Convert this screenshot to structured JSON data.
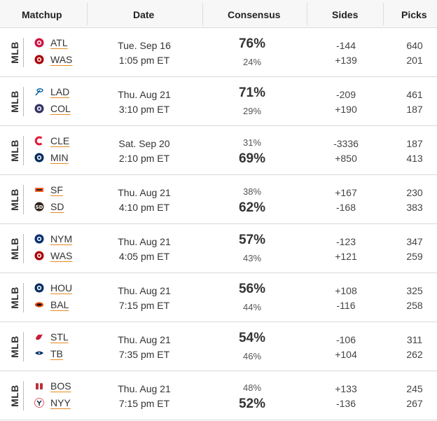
{
  "header": {
    "matchup": "Matchup",
    "date": "Date",
    "consensus": "Consensus",
    "sides": "Sides",
    "picks": "Picks"
  },
  "games": [
    {
      "league": "MLB",
      "away": {
        "abbr": "ATL",
        "logo": "braves-logo",
        "color": "#ce1141"
      },
      "home": {
        "abbr": "WAS",
        "logo": "nationals-logo",
        "color": "#ab0003"
      },
      "date": "Tue. Sep 16",
      "time": "1:05 pm ET",
      "consensus_away": "76%",
      "consensus_home": "24%",
      "favored": "away",
      "side_away": "-144",
      "side_home": "+139",
      "picks_away": "640",
      "picks_home": "201"
    },
    {
      "league": "MLB",
      "away": {
        "abbr": "LAD",
        "logo": "dodgers-logo",
        "color": "#005a9c"
      },
      "home": {
        "abbr": "COL",
        "logo": "rockies-logo",
        "color": "#333366"
      },
      "date": "Thu. Aug 21",
      "time": "3:10 pm ET",
      "consensus_away": "71%",
      "consensus_home": "29%",
      "favored": "away",
      "side_away": "-209",
      "side_home": "+190",
      "picks_away": "461",
      "picks_home": "187"
    },
    {
      "league": "MLB",
      "away": {
        "abbr": "CLE",
        "logo": "guardians-logo",
        "color": "#e31937"
      },
      "home": {
        "abbr": "MIN",
        "logo": "twins-logo",
        "color": "#002b5c"
      },
      "date": "Sat. Sep 20",
      "time": "2:10 pm ET",
      "consensus_away": "31%",
      "consensus_home": "69%",
      "favored": "home",
      "side_away": "-3336",
      "side_home": "+850",
      "picks_away": "187",
      "picks_home": "413"
    },
    {
      "league": "MLB",
      "away": {
        "abbr": "SF",
        "logo": "giants-logo",
        "color": "#fd5a1e"
      },
      "home": {
        "abbr": "SD",
        "logo": "padres-logo",
        "color": "#2f241d"
      },
      "date": "Thu. Aug 21",
      "time": "4:10 pm ET",
      "consensus_away": "38%",
      "consensus_home": "62%",
      "favored": "home",
      "side_away": "+167",
      "side_home": "-168",
      "picks_away": "230",
      "picks_home": "383"
    },
    {
      "league": "MLB",
      "away": {
        "abbr": "NYM",
        "logo": "mets-logo",
        "color": "#002d72"
      },
      "home": {
        "abbr": "WAS",
        "logo": "nationals-logo",
        "color": "#ab0003"
      },
      "date": "Thu. Aug 21",
      "time": "4:05 pm ET",
      "consensus_away": "57%",
      "consensus_home": "43%",
      "favored": "away",
      "side_away": "-123",
      "side_home": "+121",
      "picks_away": "347",
      "picks_home": "259"
    },
    {
      "league": "MLB",
      "away": {
        "abbr": "HOU",
        "logo": "astros-logo",
        "color": "#002d62"
      },
      "home": {
        "abbr": "BAL",
        "logo": "orioles-logo",
        "color": "#df4601"
      },
      "date": "Thu. Aug 21",
      "time": "7:15 pm ET",
      "consensus_away": "56%",
      "consensus_home": "44%",
      "favored": "away",
      "side_away": "+108",
      "side_home": "-116",
      "picks_away": "325",
      "picks_home": "258"
    },
    {
      "league": "MLB",
      "away": {
        "abbr": "STL",
        "logo": "cardinals-logo",
        "color": "#c41e3a"
      },
      "home": {
        "abbr": "TB",
        "logo": "rays-logo",
        "color": "#092c5c"
      },
      "date": "Thu. Aug 21",
      "time": "7:35 pm ET",
      "consensus_away": "54%",
      "consensus_home": "46%",
      "favored": "away",
      "side_away": "-106",
      "side_home": "+104",
      "picks_away": "311",
      "picks_home": "262"
    },
    {
      "league": "MLB",
      "away": {
        "abbr": "BOS",
        "logo": "red-sox-logo",
        "color": "#bd3039"
      },
      "home": {
        "abbr": "NYY",
        "logo": "yankees-logo",
        "color": "#0c2340"
      },
      "date": "Thu. Aug 21",
      "time": "7:15 pm ET",
      "consensus_away": "48%",
      "consensus_home": "52%",
      "favored": "home",
      "side_away": "+133",
      "side_home": "-136",
      "picks_away": "245",
      "picks_home": "267"
    }
  ]
}
